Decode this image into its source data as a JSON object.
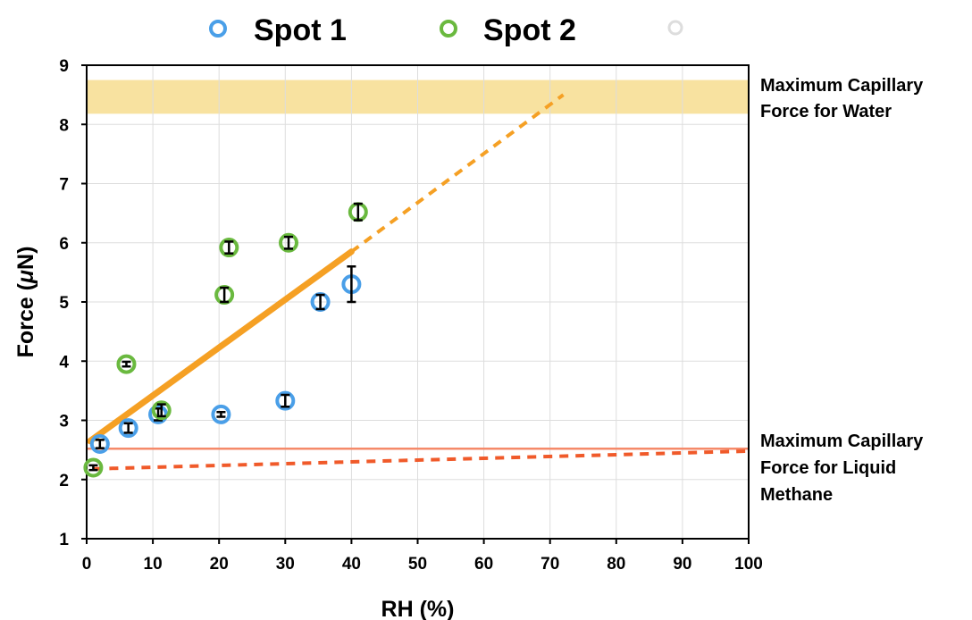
{
  "chart_data": {
    "type": "scatter",
    "xlabel": "RH (%)",
    "ylabel_prefix": "Force (",
    "ylabel_mu": "μ",
    "ylabel_suffix": "N)",
    "xlim": [
      0,
      100
    ],
    "ylim": [
      1,
      9
    ],
    "xticks": [
      "0",
      "10",
      "20",
      "30",
      "40",
      "50",
      "60",
      "70",
      "80",
      "90",
      "100"
    ],
    "yticks": [
      "1",
      "2",
      "3",
      "4",
      "5",
      "6",
      "7",
      "8",
      "9"
    ],
    "grid": true,
    "legend_position": "top",
    "series": [
      {
        "name": "Spot 1",
        "color": "#4a9fe8",
        "points": [
          {
            "x": 2,
            "y": 2.6,
            "err": 0.07
          },
          {
            "x": 6.3,
            "y": 2.87,
            "err": 0.08
          },
          {
            "x": 10.8,
            "y": 3.1,
            "err": 0.1
          },
          {
            "x": 20.3,
            "y": 3.1,
            "err": 0.04
          },
          {
            "x": 30,
            "y": 3.33,
            "err": 0.1
          },
          {
            "x": 35.3,
            "y": 5.0,
            "err": 0.12
          },
          {
            "x": 40,
            "y": 5.3,
            "err": 0.3
          }
        ]
      },
      {
        "name": "Spot 2",
        "color": "#6ab93f",
        "points": [
          {
            "x": 1,
            "y": 2.2,
            "err": 0.04
          },
          {
            "x": 6,
            "y": 3.95,
            "err": 0.04
          },
          {
            "x": 11.3,
            "y": 3.17,
            "err": 0.1
          },
          {
            "x": 20.8,
            "y": 5.12,
            "err": 0.12
          },
          {
            "x": 21.5,
            "y": 5.92,
            "err": 0.1
          },
          {
            "x": 30.5,
            "y": 6.0,
            "err": 0.1
          },
          {
            "x": 41,
            "y": 6.52,
            "err": 0.14
          }
        ]
      }
    ],
    "trend_line": {
      "color": "#f5a024",
      "solid": [
        [
          0.5,
          2.65
        ],
        [
          40,
          5.85
        ]
      ],
      "dashed_end": [
        72,
        8.5
      ]
    },
    "methane_line": {
      "color": "#f05a2a",
      "dashed": [
        [
          1,
          2.18
        ],
        [
          100,
          2.48
        ]
      ]
    },
    "methane_level": {
      "color": "#f58a6a",
      "y": 2.52
    },
    "water_band": {
      "color": "#f8e2a0",
      "y_range": [
        8.18,
        8.75
      ]
    },
    "annotations": {
      "water": [
        "Maximum  Capillary",
        "Force for Water"
      ],
      "methane": [
        "Maximum Capillary",
        "Force for Liquid",
        "Methane"
      ]
    }
  }
}
